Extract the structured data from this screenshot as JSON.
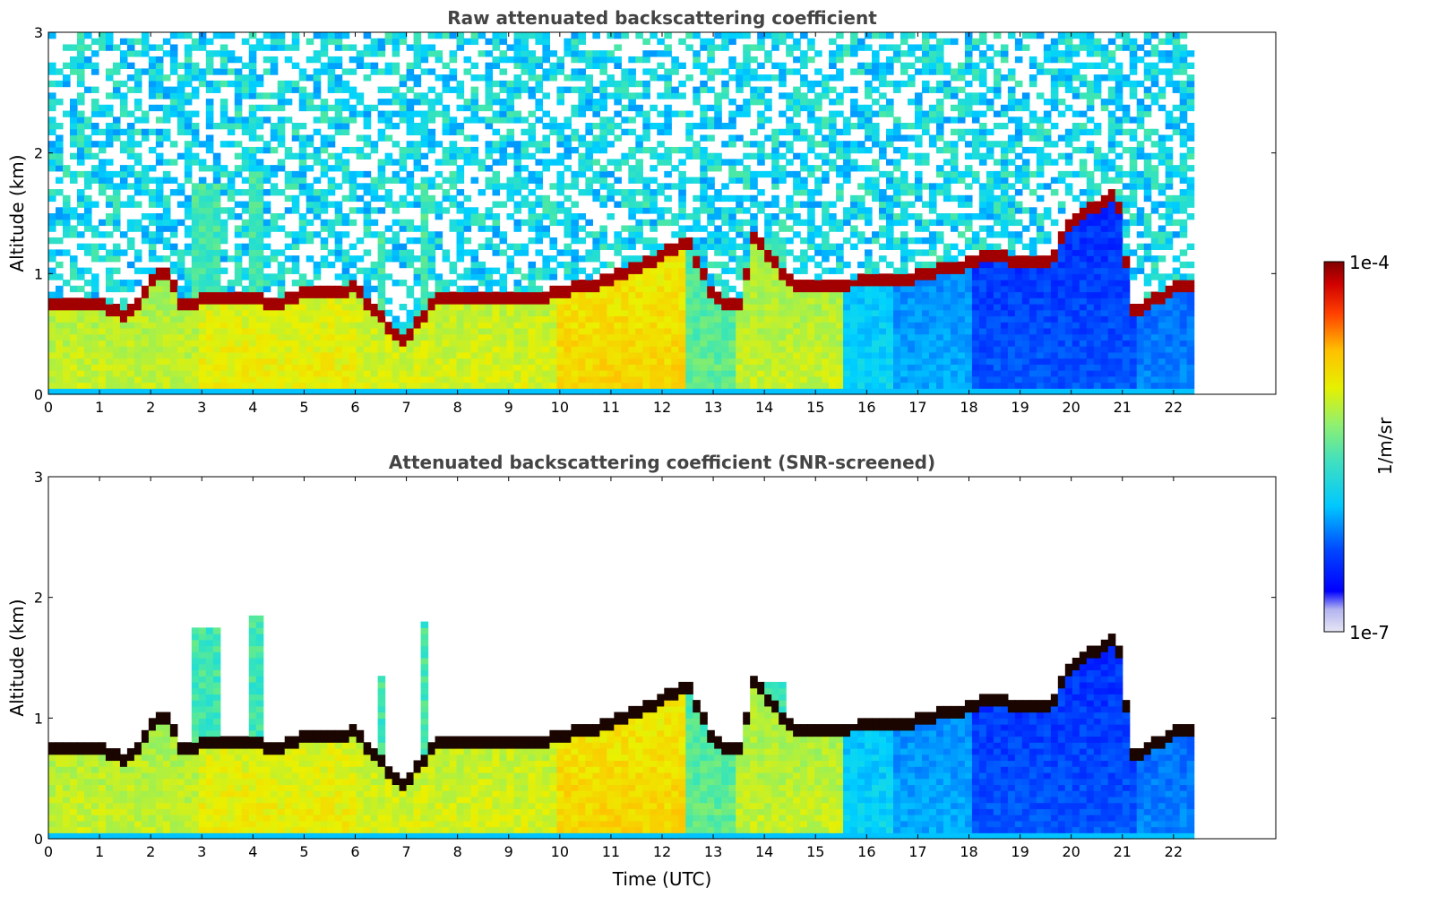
{
  "chart_data": [
    {
      "type": "heatmap",
      "title": "Raw attenuated backscattering coefficient",
      "xlabel": "",
      "ylabel": "Altitude (km)",
      "xlim": [
        0,
        24
      ],
      "ylim": [
        0,
        3
      ],
      "data_end_hour": 22.4,
      "x_ticks": [
        "0",
        "1",
        "2",
        "3",
        "4",
        "5",
        "6",
        "7",
        "8",
        "9",
        "10",
        "11",
        "12",
        "13",
        "14",
        "15",
        "16",
        "17",
        "18",
        "19",
        "20",
        "21",
        "22"
      ],
      "y_ticks": [
        "0",
        "1",
        "2",
        "3"
      ],
      "screened": false
    },
    {
      "type": "heatmap",
      "title": "Attenuated backscattering coefficient (SNR-screened)",
      "xlabel": "Time (UTC)",
      "ylabel": "Altitude (km)",
      "xlim": [
        0,
        24
      ],
      "ylim": [
        0,
        3
      ],
      "data_end_hour": 22.4,
      "x_ticks": [
        "0",
        "1",
        "2",
        "3",
        "4",
        "5",
        "6",
        "7",
        "8",
        "9",
        "10",
        "11",
        "12",
        "13",
        "14",
        "15",
        "16",
        "17",
        "18",
        "19",
        "20",
        "21",
        "22"
      ],
      "y_ticks": [
        "0",
        "1",
        "2",
        "3"
      ],
      "screened": true
    }
  ],
  "colorbar": {
    "label": "1/m/sr",
    "max_label": "1e-4",
    "min_label": "1e-7",
    "colormap": "jet",
    "scale": "log"
  },
  "cloud_base_km": [
    [
      0,
      0.72
    ],
    [
      0.5,
      0.72
    ],
    [
      1,
      0.72
    ],
    [
      1.5,
      0.62
    ],
    [
      1.8,
      0.75
    ],
    [
      2.0,
      0.92
    ],
    [
      2.3,
      1.0
    ],
    [
      2.6,
      0.7
    ],
    [
      3.0,
      0.75
    ],
    [
      4.0,
      0.78
    ],
    [
      4.3,
      0.7
    ],
    [
      5.0,
      0.8
    ],
    [
      6.0,
      0.85
    ],
    [
      6.5,
      0.6
    ],
    [
      7.0,
      0.4
    ],
    [
      7.5,
      0.75
    ],
    [
      8.0,
      0.76
    ],
    [
      9.0,
      0.76
    ],
    [
      9.5,
      0.76
    ],
    [
      10.0,
      0.82
    ],
    [
      11.0,
      0.92
    ],
    [
      12.0,
      1.12
    ],
    [
      12.5,
      1.25
    ],
    [
      13.0,
      0.76
    ],
    [
      13.5,
      0.72
    ],
    [
      13.8,
      1.27
    ],
    [
      14.5,
      0.9
    ],
    [
      15.0,
      0.88
    ],
    [
      16.0,
      0.9
    ],
    [
      17.0,
      0.95
    ],
    [
      18.0,
      1.06
    ],
    [
      18.5,
      1.14
    ],
    [
      19.0,
      1.06
    ],
    [
      19.6,
      1.08
    ],
    [
      20.0,
      1.42
    ],
    [
      20.9,
      1.62
    ],
    [
      21.2,
      0.65
    ],
    [
      22.0,
      0.85
    ],
    [
      22.4,
      0.85
    ]
  ]
}
